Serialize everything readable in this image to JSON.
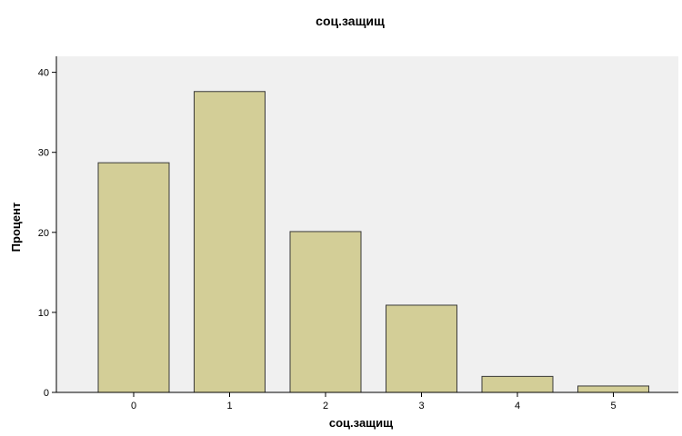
{
  "chart_data": {
    "type": "bar",
    "title": "соц.защищ",
    "xlabel": "соц.защищ",
    "ylabel": "Процент",
    "categories": [
      "0",
      "1",
      "2",
      "3",
      "4",
      "5"
    ],
    "values": [
      28.7,
      37.6,
      20.1,
      10.9,
      2.0,
      0.8
    ],
    "ylim": [
      0,
      42
    ],
    "yticks": [
      0,
      10,
      20,
      30,
      40
    ],
    "grid": false,
    "legend": "none",
    "colors": {
      "plot_background": "#f0f0f0",
      "bar_fill": "#d3ce97",
      "bar_stroke": "#3a3a3a"
    }
  }
}
